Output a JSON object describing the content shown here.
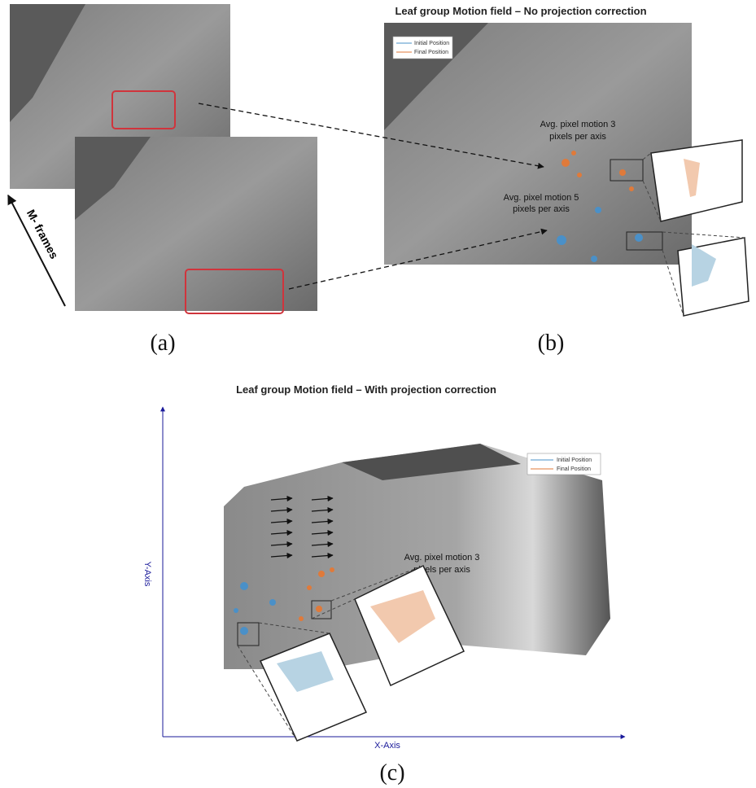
{
  "panels": [
    {
      "label": "(a)",
      "arrow_label": "M- frames"
    },
    {
      "label": "(b)",
      "title": "Leaf group Motion field – No projection correction",
      "legend": [
        "Initial Position",
        "Final Position"
      ],
      "annotations": [
        [
          "Avg. pixel motion 3",
          "pixels per axis"
        ],
        [
          "Avg. pixel motion 5",
          "pixels per axis"
        ]
      ]
    },
    {
      "label": "(c)",
      "title": "Leaf group Motion field – With projection correction",
      "legend": [
        "Initial Position",
        "Final Position"
      ],
      "annotations": [
        [
          "Avg. pixel motion 3",
          "pixels per axis"
        ]
      ],
      "y_axis_label": "Y-Axis",
      "x_axis_label": "X-Axis"
    }
  ]
}
